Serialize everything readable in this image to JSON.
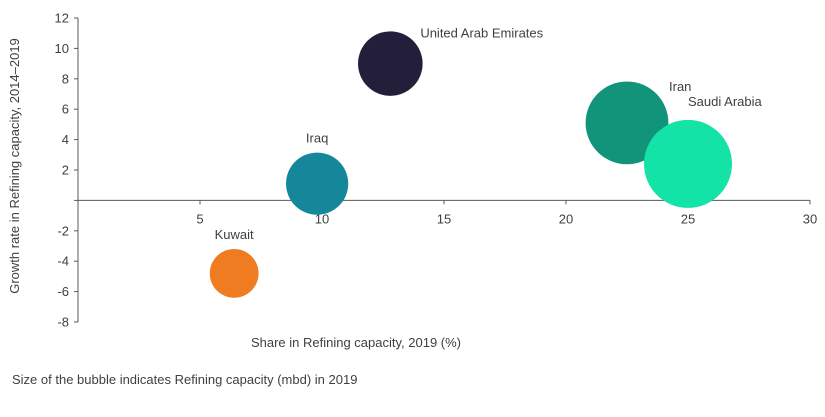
{
  "chart_data": {
    "type": "scatter",
    "subtype": "bubble",
    "title": "",
    "xlabel": "Share in Refining capacity, 2019 (%)",
    "ylabel": "Growth rate in Refining capacity, 2014–2019",
    "xlim": [
      0,
      30
    ],
    "ylim": [
      -8,
      12
    ],
    "xticks": [
      5,
      10,
      15,
      20,
      25,
      30
    ],
    "yticks": [
      -8,
      -6,
      -4,
      -2,
      2,
      4,
      6,
      8,
      10,
      12
    ],
    "grid": false,
    "points": [
      {
        "label": "Kuwait",
        "x": 6.4,
        "y": -4.8,
        "color": "#f07c22",
        "label_pos": "above"
      },
      {
        "label": "Iraq",
        "x": 9.8,
        "y": 1.1,
        "color": "#14879b",
        "label_pos": "above"
      },
      {
        "label": "United Arab Emirates",
        "x": 12.8,
        "y": 9.0,
        "color": "#231f3a",
        "label_pos": "above-right"
      },
      {
        "label": "Iran",
        "x": 22.5,
        "y": 5.1,
        "color": "#12947a",
        "label_pos": "above-right"
      },
      {
        "label": "Saudi Arabia",
        "x": 25.0,
        "y": 2.4,
        "color": "#13e3a6",
        "label_pos": "above-right"
      }
    ],
    "sizes": {
      "Kuwait": 0.8,
      "Iraq": 1.3,
      "United Arab Emirates": 1.4,
      "Iran": 2.3,
      "Saudi Arabia": 2.6
    }
  },
  "footnote": "Size of the bubble indicates Refining capacity (mbd) in 2019"
}
